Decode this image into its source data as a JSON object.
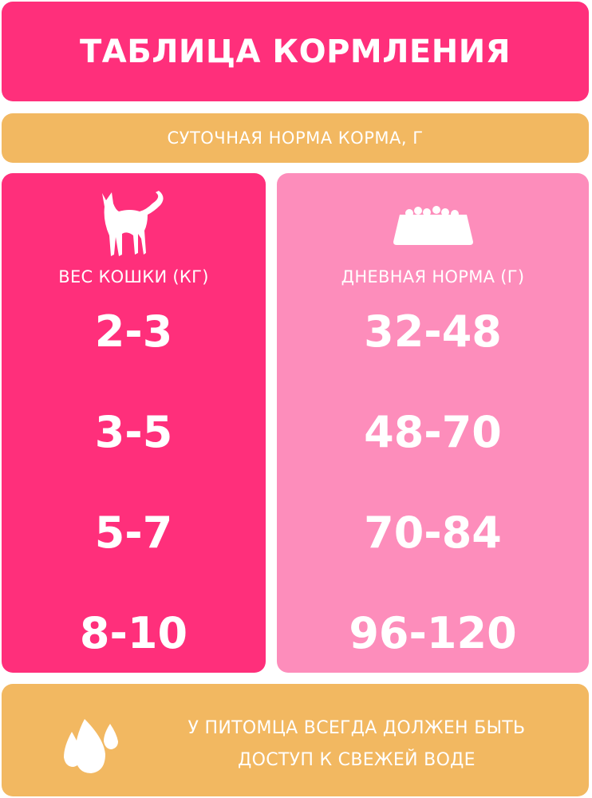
{
  "header": {
    "title": "ТАБЛИЦА КОРМЛЕНИЯ"
  },
  "subheader": {
    "title": "СУТОЧНАЯ НОРМА КОРМА, Г"
  },
  "left": {
    "icon": "cat-icon",
    "heading": "ВЕС КОШКИ (КГ)",
    "values": [
      "2-3",
      "3-5",
      "5-7",
      "8-10"
    ]
  },
  "right": {
    "icon": "food-bowl-icon",
    "heading": "ДНЕВНАЯ НОРМА (Г)",
    "values": [
      "32-48",
      "48-70",
      "70-84",
      "96-120"
    ]
  },
  "footer": {
    "icon": "water-drops-icon",
    "line1": "У ПИТОМЦА ВСЕГДА ДОЛЖЕН БЫТЬ",
    "line2": "ДОСТУП К СВЕЖЕЙ ВОДЕ"
  },
  "colors": {
    "pink": "#ff2f7b",
    "light_pink": "#fd8dbb",
    "orange": "#f2b861"
  }
}
